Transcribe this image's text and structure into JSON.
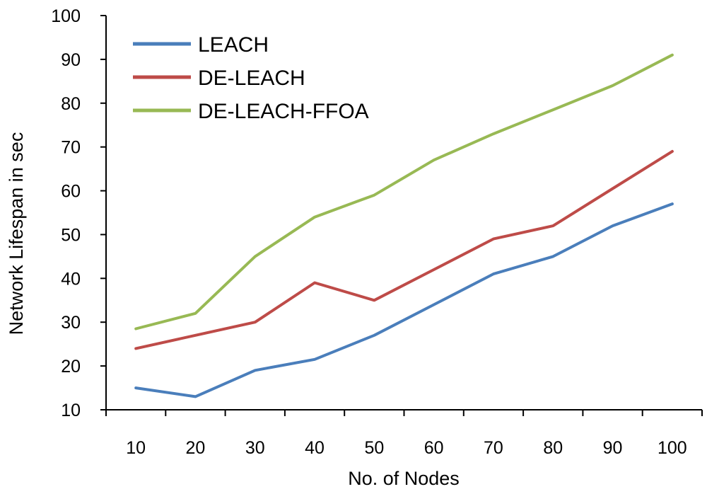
{
  "chart_data": {
    "type": "line",
    "title": "",
    "xlabel": "No. of Nodes",
    "ylabel": "Network Lifespan in sec",
    "categories": [
      "10",
      "20",
      "30",
      "40",
      "50",
      "60",
      "70",
      "80",
      "90",
      "100"
    ],
    "ylim": [
      10,
      100
    ],
    "yticks": [
      "10",
      "20",
      "30",
      "40",
      "50",
      "60",
      "70",
      "80",
      "90",
      "100"
    ],
    "grid": false,
    "legend_position": "top-left",
    "series": [
      {
        "name": "LEACH",
        "color": "#4a7ebb",
        "values": [
          15,
          13,
          19,
          21.5,
          27,
          34,
          41,
          45,
          52,
          57
        ]
      },
      {
        "name": "DE-LEACH",
        "color": "#be4b48",
        "values": [
          24,
          27,
          30,
          39,
          35,
          42,
          49,
          52,
          60.5,
          69
        ]
      },
      {
        "name": "DE-LEACH-FFOA",
        "color": "#98b954",
        "values": [
          28.5,
          32,
          45,
          54,
          59,
          67,
          73,
          78.5,
          84,
          91
        ]
      }
    ]
  }
}
